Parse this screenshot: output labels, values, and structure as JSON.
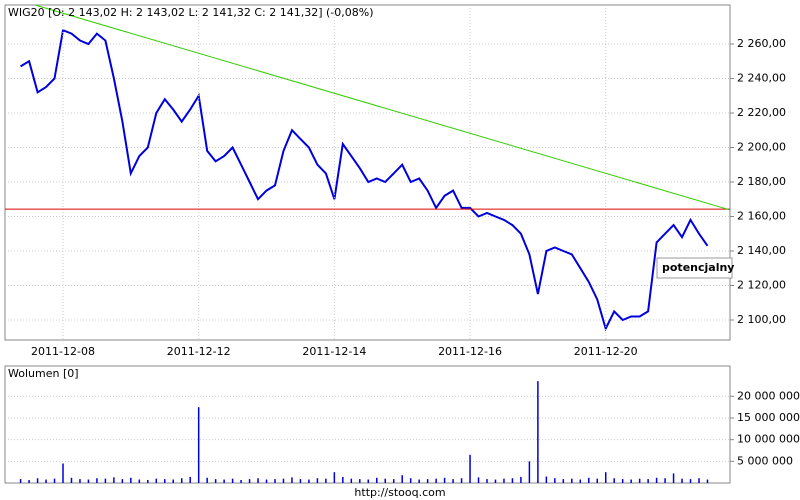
{
  "chart_data": [
    {
      "type": "line",
      "title": "WIG20 [O: 2 143,02  H: 2 143,02  L: 2 141,32  C: 2 141,32] (-0,08%)",
      "color": "#0000dd",
      "categories": [
        null,
        null,
        null,
        null,
        null,
        "2011-12-08",
        null,
        null,
        null,
        null,
        null,
        null,
        null,
        null,
        null,
        null,
        null,
        null,
        null,
        null,
        null,
        "2011-12-12",
        null,
        null,
        null,
        null,
        null,
        null,
        null,
        null,
        null,
        null,
        null,
        null,
        null,
        null,
        null,
        "2011-12-14",
        null,
        null,
        null,
        null,
        null,
        null,
        null,
        null,
        null,
        null,
        null,
        null,
        null,
        null,
        null,
        "2011-12-16",
        null,
        null,
        null,
        null,
        null,
        null,
        null,
        null,
        null,
        null,
        null,
        null,
        null,
        null,
        null,
        "2011-12-20",
        null,
        null,
        null,
        null,
        null,
        null,
        null,
        null,
        null,
        null,
        null,
        null
      ],
      "values": [
        2247,
        2250,
        2232,
        2235,
        2240,
        2268,
        2266,
        2262,
        2260,
        2266,
        2262,
        2240,
        2215,
        2185,
        2195,
        2200,
        2220,
        2228,
        2222,
        2215,
        2222,
        2230,
        2198,
        2192,
        2195,
        2200,
        2190,
        2180,
        2170,
        2175,
        2178,
        2198,
        2210,
        2205,
        2200,
        2190,
        2185,
        2170,
        2202,
        2195,
        2188,
        2180,
        2182,
        2180,
        2185,
        2190,
        2180,
        2182,
        2175,
        2165,
        2172,
        2175,
        2165,
        2165,
        2160,
        2162,
        2160,
        2158,
        2155,
        2150,
        2138,
        2115,
        2140,
        2142,
        2140,
        2138,
        2130,
        2122,
        2112,
        2095,
        2105,
        2100,
        2102,
        2102,
        2105,
        2145,
        2150,
        2155,
        2148,
        2158,
        2150,
        2143
      ],
      "ylim": [
        2088.4,
        2282.6
      ],
      "yticks": [
        {
          "value": 2100,
          "label": "2 100,00"
        },
        {
          "value": 2120,
          "label": "2 120,00"
        },
        {
          "value": 2140,
          "label": "2 140,00"
        },
        {
          "value": 2160,
          "label": "2 160,00"
        },
        {
          "value": 2180,
          "label": "2 180,00"
        },
        {
          "value": 2200,
          "label": "2 200,00"
        },
        {
          "value": 2220,
          "label": "2 220,00"
        },
        {
          "value": 2240,
          "label": "2 240,00"
        },
        {
          "value": 2260,
          "label": "2 260,00"
        }
      ],
      "grid": true,
      "support_line": {
        "value": 2164.3,
        "color": "#dd0000"
      },
      "trendline": {
        "values": [
          2282.6,
          2163.8
        ],
        "color": "#33cc00"
      },
      "annotation": "potencjalny"
    },
    {
      "type": "bar",
      "title": "Wolumen [0]",
      "color": "#0000dd",
      "values": [
        900000,
        700000,
        1100000,
        800000,
        1000000,
        4500000,
        1200000,
        900000,
        800000,
        1100000,
        1000000,
        1300000,
        900000,
        1200000,
        800000,
        700000,
        1000000,
        900000,
        800000,
        1100000,
        1400000,
        17500000,
        1200000,
        900000,
        800000,
        1000000,
        700000,
        900000,
        1100000,
        800000,
        900000,
        1000000,
        1300000,
        900000,
        800000,
        1100000,
        1000000,
        2500000,
        1400000,
        1000000,
        900000,
        800000,
        1200000,
        1000000,
        900000,
        1800000,
        1100000,
        800000,
        900000,
        1000000,
        1200000,
        900000,
        1100000,
        6500000,
        1300000,
        900000,
        800000,
        1000000,
        1100000,
        1400000,
        5000000,
        23500000,
        1500000,
        1100000,
        900000,
        1000000,
        800000,
        1200000,
        1000000,
        2500000,
        1100000,
        900000,
        800000,
        1000000,
        900000,
        1200000,
        1100000,
        2200000,
        1000000,
        900000,
        1100000,
        800000
      ],
      "ylim": [
        0,
        27000000
      ],
      "yticks": [
        {
          "value": 5000000,
          "label": "5 000 000"
        },
        {
          "value": 10000000,
          "label": "10 000 000"
        },
        {
          "value": 15000000,
          "label": "15 000 000"
        },
        {
          "value": 20000000,
          "label": "20 000 000"
        }
      ],
      "grid": true
    }
  ],
  "footer": "http://stooq.com"
}
